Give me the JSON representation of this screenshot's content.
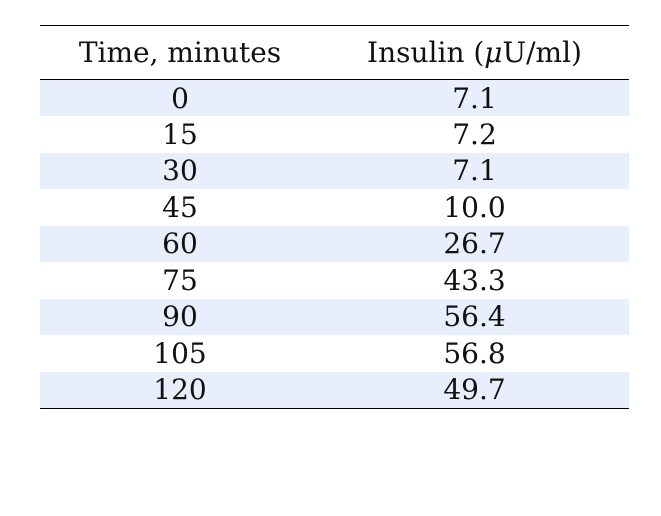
{
  "chart_data": {
    "type": "table",
    "columns": [
      "Time, minutes",
      "Insulin (μU/ml)"
    ],
    "header_parts": {
      "col2_prefix": "Insulin (",
      "col2_symbol": "μ",
      "col2_suffix": "U/ml)"
    },
    "rows": [
      [
        "0",
        "7.1"
      ],
      [
        "15",
        "7.2"
      ],
      [
        "30",
        "7.1"
      ],
      [
        "45",
        "10.0"
      ],
      [
        "60",
        "26.7"
      ],
      [
        "75",
        "43.3"
      ],
      [
        "90",
        "56.4"
      ],
      [
        "105",
        "56.8"
      ],
      [
        "120",
        "49.7"
      ]
    ],
    "row_shading": "#e8eefb"
  }
}
